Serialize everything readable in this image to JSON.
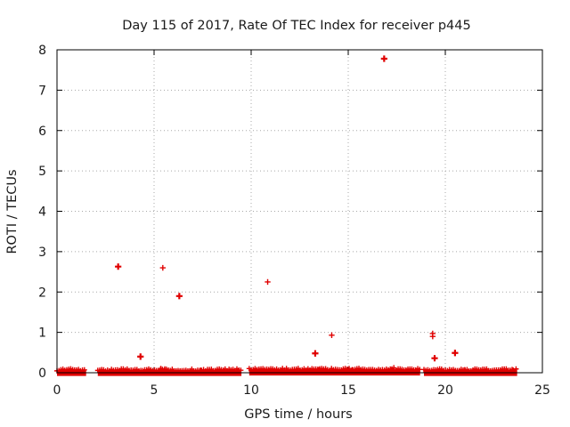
{
  "chart_data": {
    "type": "scatter",
    "title": "Day 115 of 2017, Rate Of TEC Index for receiver p445",
    "xlabel": "GPS time / hours",
    "ylabel": "ROTI / TECUs",
    "xlim": [
      0,
      25
    ],
    "ylim": [
      0,
      8
    ],
    "xticks": [
      0,
      5,
      10,
      15,
      20,
      25
    ],
    "yticks": [
      0,
      1,
      2,
      3,
      4,
      5,
      6,
      7,
      8
    ],
    "grid": true,
    "marker": "plus",
    "color": "#e00000",
    "baseline_segments": [
      {
        "x_start": 0.0,
        "x_end": 1.5,
        "y": 0.02
      },
      {
        "x_start": 2.1,
        "x_end": 9.5,
        "y": 0.02
      },
      {
        "x_start": 9.9,
        "x_end": 18.7,
        "y": 0.03
      },
      {
        "x_start": 18.9,
        "x_end": 23.7,
        "y": 0.02
      }
    ],
    "points": [
      {
        "x": 3.15,
        "y": 2.63,
        "bold": true
      },
      {
        "x": 4.3,
        "y": 0.4,
        "bold": true
      },
      {
        "x": 5.45,
        "y": 2.6,
        "bold": false
      },
      {
        "x": 6.3,
        "y": 1.9,
        "bold": true
      },
      {
        "x": 10.85,
        "y": 2.25,
        "bold": false
      },
      {
        "x": 13.3,
        "y": 0.48,
        "bold": true
      },
      {
        "x": 14.15,
        "y": 0.93,
        "bold": false
      },
      {
        "x": 16.85,
        "y": 7.78,
        "bold": true
      },
      {
        "x": 19.35,
        "y": 0.97,
        "bold": false
      },
      {
        "x": 19.35,
        "y": 0.9,
        "bold": false
      },
      {
        "x": 19.45,
        "y": 0.36,
        "bold": true
      },
      {
        "x": 20.5,
        "y": 0.49,
        "bold": true
      },
      {
        "x": 5.35,
        "y": 0.1,
        "bold": false
      },
      {
        "x": 5.55,
        "y": 0.09,
        "bold": false
      },
      {
        "x": 17.25,
        "y": 0.09,
        "bold": false
      },
      {
        "x": 17.35,
        "y": 0.12,
        "bold": false
      },
      {
        "x": 2.3,
        "y": 0.06,
        "bold": false
      },
      {
        "x": 7.4,
        "y": 0.06,
        "bold": false
      },
      {
        "x": 13.5,
        "y": 0.07,
        "bold": false
      },
      {
        "x": 15.2,
        "y": 0.07,
        "bold": false
      },
      {
        "x": 21.0,
        "y": 0.07,
        "bold": false
      },
      {
        "x": 23.5,
        "y": 0.06,
        "bold": false
      }
    ]
  }
}
